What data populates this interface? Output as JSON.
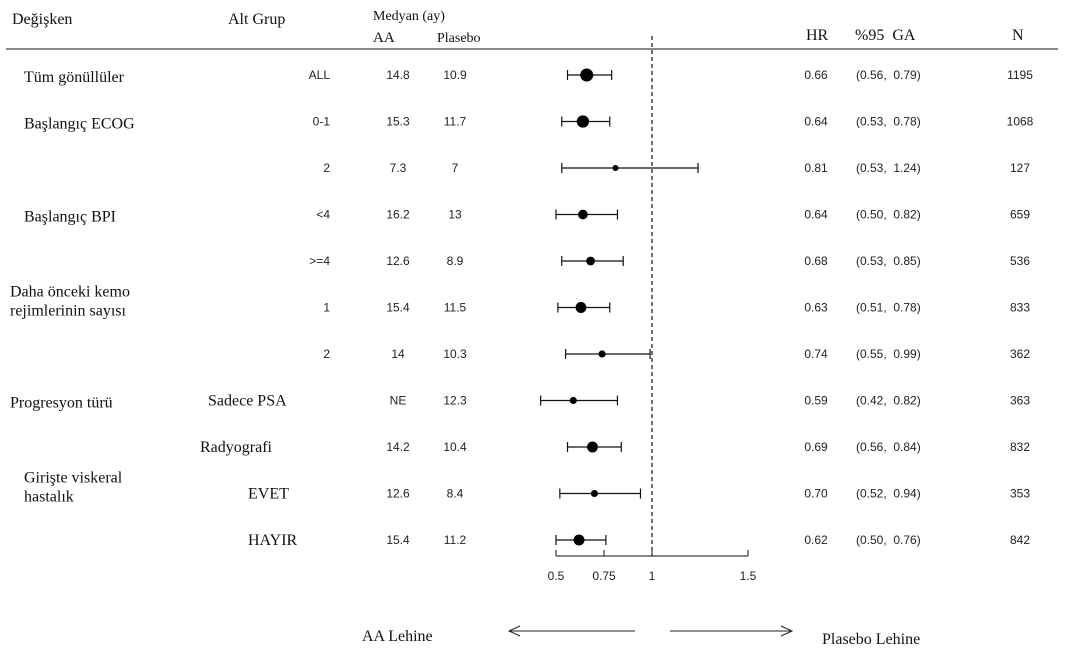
{
  "header": {
    "variable": "Değişken",
    "subgroup": "Alt Grup",
    "median": "Medyan (ay)",
    "aa": "AA",
    "placebo": "Plasebo",
    "hr": "HR",
    "ci": "%95  GA",
    "n": "N"
  },
  "footer": {
    "favors_aa": "AA Lehine",
    "favors_placebo": "Plasebo Lehine"
  },
  "chart_data": {
    "type": "forest",
    "title": "",
    "xlabel": "",
    "ylabel": "",
    "reference_line": 1,
    "xlim": [
      0.5,
      1.5
    ],
    "x_ticks": [
      {
        "value": 0.5,
        "label": "0.5"
      },
      {
        "value": 0.75,
        "label": "0.75"
      },
      {
        "value": 1,
        "label": "1"
      },
      {
        "value": 1.5,
        "label": "1.5"
      }
    ],
    "rows": [
      {
        "variable": "Tüm gönüllüler",
        "subgroup": "ALL",
        "aa": "14.8",
        "placebo": "10.9",
        "hr": 0.66,
        "lower": 0.56,
        "upper": 0.79,
        "hr_label": "0.66",
        "ci_label": "(0.56,  0.79)",
        "n": "1195"
      },
      {
        "variable": "Başlangıç ECOG",
        "subgroup": "0-1",
        "aa": "15.3",
        "placebo": "11.7",
        "hr": 0.64,
        "lower": 0.53,
        "upper": 0.78,
        "hr_label": "0.64",
        "ci_label": "(0.53,  0.78)",
        "n": "1068"
      },
      {
        "variable": "",
        "subgroup": "2",
        "aa": "7.3",
        "placebo": "7",
        "hr": 0.81,
        "lower": 0.53,
        "upper": 1.24,
        "hr_label": "0.81",
        "ci_label": "(0.53,  1.24)",
        "n": "127"
      },
      {
        "variable": "Başlangıç BPI",
        "subgroup": "<4",
        "aa": "16.2",
        "placebo": "13",
        "hr": 0.64,
        "lower": 0.5,
        "upper": 0.82,
        "hr_label": "0.64",
        "ci_label": "(0.50,  0.82)",
        "n": "659"
      },
      {
        "variable": "",
        "subgroup": ">=4",
        "aa": "12.6",
        "placebo": "8.9",
        "hr": 0.68,
        "lower": 0.53,
        "upper": 0.85,
        "hr_label": "0.68",
        "ci_label": "(0.53,  0.85)",
        "n": "536"
      },
      {
        "variable": "Daha önceki kemo",
        "variable2": "rejimlerinin sayısı",
        "subgroup": "1",
        "aa": "15.4",
        "placebo": "11.5",
        "hr": 0.63,
        "lower": 0.51,
        "upper": 0.78,
        "hr_label": "0.63",
        "ci_label": "(0.51,  0.78)",
        "n": "833"
      },
      {
        "variable": "",
        "subgroup": "2",
        "aa": "14",
        "placebo": "10.3",
        "hr": 0.74,
        "lower": 0.55,
        "upper": 0.99,
        "hr_label": "0.74",
        "ci_label": "(0.55,  0.99)",
        "n": "362"
      },
      {
        "variable": "Progresyon türü",
        "subgroup": "Sadece PSA",
        "aa": "NE",
        "placebo": "12.3",
        "hr": 0.59,
        "lower": 0.42,
        "upper": 0.82,
        "hr_label": "0.59",
        "ci_label": "(0.42,  0.82)",
        "n": "363"
      },
      {
        "variable": "",
        "subgroup": "Radyografi",
        "aa": "14.2",
        "placebo": "10.4",
        "hr": 0.69,
        "lower": 0.56,
        "upper": 0.84,
        "hr_label": "0.69",
        "ci_label": "(0.56,  0.84)",
        "n": "832"
      },
      {
        "variable": "Girişte viskeral",
        "variable2": "hastalık",
        "subgroup": "EVET",
        "aa": "12.6",
        "placebo": "8.4",
        "hr": 0.7,
        "lower": 0.52,
        "upper": 0.94,
        "hr_label": "0.70",
        "ci_label": "(0.52,  0.94)",
        "n": "353"
      },
      {
        "variable": "",
        "subgroup": "HAYIR",
        "aa": "15.4",
        "placebo": "11.2",
        "hr": 0.62,
        "lower": 0.5,
        "upper": 0.76,
        "hr_label": "0.62",
        "ci_label": "(0.50,  0.76)",
        "n": "842"
      }
    ]
  }
}
